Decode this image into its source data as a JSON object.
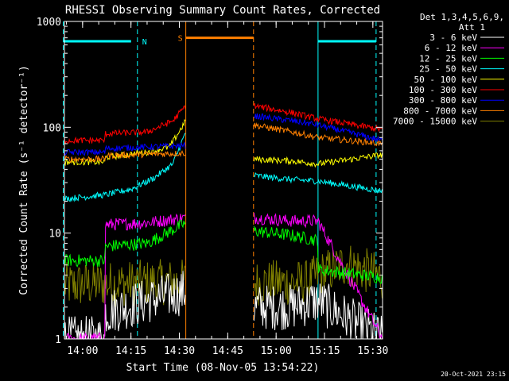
{
  "chart_data": {
    "type": "line",
    "title": "RHESSI Observing Summary Count Rates, Corrected",
    "xlabel": "Start Time (08-Nov-05 13:54:22)",
    "ylabel": "Corrected Count Rate (s⁻¹ detector⁻¹)",
    "x_unit": "UT time",
    "xlim": [
      "13:54:22",
      "15:33:00"
    ],
    "ylim": [
      1,
      1000
    ],
    "yscale": "log",
    "xticks": [
      "14:00",
      "14:15",
      "14:30",
      "14:45",
      "15:00",
      "15:15",
      "15:30"
    ],
    "yticks": [
      "1",
      "10",
      "100",
      "1000"
    ],
    "grid": false,
    "legend": {
      "placement": "right",
      "header": [
        "Det 1,3,4,5,6,9,",
        "Att 1"
      ]
    },
    "data_gap": [
      "14:32",
      "14:53"
    ],
    "series": [
      {
        "name": "3 - 6 keV",
        "color": "#ffffff",
        "x": [
          "13:54",
          "14:07",
          "14:07",
          "14:25",
          "14:32",
          "14:53",
          "15:05",
          "15:13",
          "15:33"
        ],
        "y": [
          1,
          1,
          1.8,
          2.5,
          2.8,
          2,
          2,
          2.3,
          1
        ]
      },
      {
        "name": "6 - 12 keV",
        "color": "#ff00ff",
        "x": [
          "13:54",
          "14:07",
          "14:07",
          "14:20",
          "14:32",
          "14:53",
          "15:05",
          "15:13",
          "15:33"
        ],
        "y": [
          1,
          1,
          12,
          12.5,
          14,
          14,
          13,
          13,
          1
        ]
      },
      {
        "name": "12 - 25 keV",
        "color": "#00ff00",
        "x": [
          "13:54",
          "14:07",
          "14:07",
          "14:20",
          "14:32",
          "14:53",
          "15:05",
          "15:13",
          "15:13",
          "15:33"
        ],
        "y": [
          5.5,
          5.5,
          7.5,
          8,
          12.5,
          10.5,
          9.5,
          8.5,
          4.5,
          3.8
        ]
      },
      {
        "name": "25 - 50 keV",
        "color": "#00ffff",
        "x": [
          "13:54",
          "14:07",
          "14:15",
          "14:22",
          "14:28",
          "14:32",
          "14:53",
          "15:05",
          "15:13",
          "15:33"
        ],
        "y": [
          21,
          23,
          26,
          33,
          45,
          90,
          35,
          32,
          31,
          25
        ]
      },
      {
        "name": "50 - 100 keV",
        "color": "#ffff00",
        "x": [
          "13:54",
          "14:07",
          "14:07",
          "14:20",
          "14:27",
          "14:32",
          "14:53",
          "15:05",
          "15:13",
          "15:33"
        ],
        "y": [
          47,
          47,
          52,
          58,
          65,
          115,
          50,
          48,
          45,
          55
        ]
      },
      {
        "name": "100 - 300 keV",
        "color": "#ff0000",
        "x": [
          "13:54",
          "14:07",
          "14:07",
          "14:20",
          "14:28",
          "14:32",
          "14:53",
          "15:05",
          "15:13",
          "15:33"
        ],
        "y": [
          75,
          75,
          87,
          90,
          115,
          160,
          160,
          137,
          120,
          95
        ]
      },
      {
        "name": "300 - 800 keV",
        "color": "#0000ff",
        "x": [
          "13:54",
          "14:07",
          "14:07",
          "14:32",
          "14:53",
          "15:05",
          "15:13",
          "15:33"
        ],
        "y": [
          58,
          58,
          63,
          67,
          128,
          115,
          105,
          75
        ]
      },
      {
        "name": "800 - 7000 keV",
        "color": "#ff8000",
        "x": [
          "13:54",
          "14:07",
          "14:07",
          "14:32",
          "14:53",
          "15:05",
          "15:13",
          "15:33"
        ],
        "y": [
          50,
          50,
          54,
          57,
          105,
          90,
          80,
          70
        ]
      },
      {
        "name": "7000 - 15000 keV",
        "color": "#808000",
        "x": [
          "13:54",
          "14:32",
          "14:53",
          "15:10",
          "15:13",
          "15:22",
          "15:33"
        ],
        "y": [
          3.2,
          3.5,
          3.4,
          3.4,
          4.0,
          5.2,
          3.8
        ]
      }
    ],
    "annotations": [
      {
        "label": "N",
        "color": "#00ffff",
        "start": "13:54",
        "end": "14:17",
        "y": 650
      },
      {
        "label": "",
        "color": "#00ffff",
        "start": "15:13",
        "end": "15:31",
        "y": 650
      },
      {
        "label": "S",
        "color": "#ff8000",
        "start": "14:32",
        "end": "14:53",
        "y": 700
      }
    ]
  },
  "footer": {
    "date": "20-Oct-2021 23:15"
  }
}
